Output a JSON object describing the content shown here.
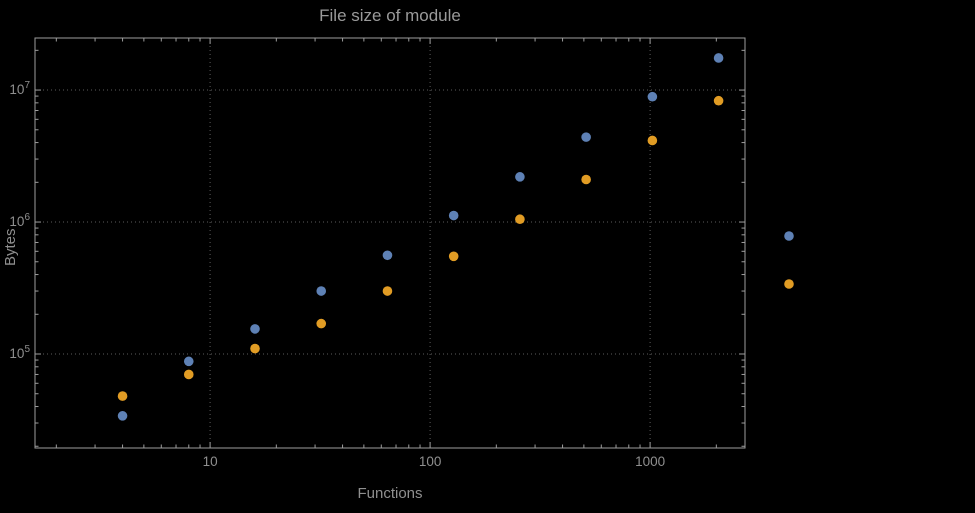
{
  "colors": {
    "background": "#000000",
    "frame": "#9e9e9e",
    "grid": "#5c5c5c",
    "text": "#8f8f8f",
    "title_text": "#9a9a9a",
    "series_blue": "#5e81b5",
    "series_orange": "#e19c24"
  },
  "chart_data": {
    "type": "scatter",
    "title": "File size of module",
    "xlabel": "Functions",
    "ylabel": "Bytes",
    "x_scale": "log",
    "y_scale": "log",
    "grid": "dotted",
    "xlim": [
      1.6,
      2700
    ],
    "ylim": [
      19400,
      24800000
    ],
    "x_ticks": [
      10,
      100,
      1000
    ],
    "y_ticks": [
      100000,
      1000000,
      10000000
    ],
    "x": [
      4,
      8,
      16,
      32,
      64,
      128,
      256,
      512,
      1024,
      2048
    ],
    "series": [
      {
        "name": "blue",
        "color": "#5e81b5",
        "values": [
          34000,
          88000,
          155000,
          300000,
          560000,
          1120000,
          2200000,
          4400000,
          8900000,
          17500000
        ]
      },
      {
        "name": "orange",
        "color": "#e19c24",
        "values": [
          48000,
          70000,
          110000,
          170000,
          300000,
          550000,
          1050000,
          2100000,
          4150000,
          8300000
        ]
      }
    ],
    "legend": {
      "position": "outside-right",
      "marker_colors": [
        "#5e81b5",
        "#e19c24"
      ],
      "labels_visible": false
    }
  }
}
